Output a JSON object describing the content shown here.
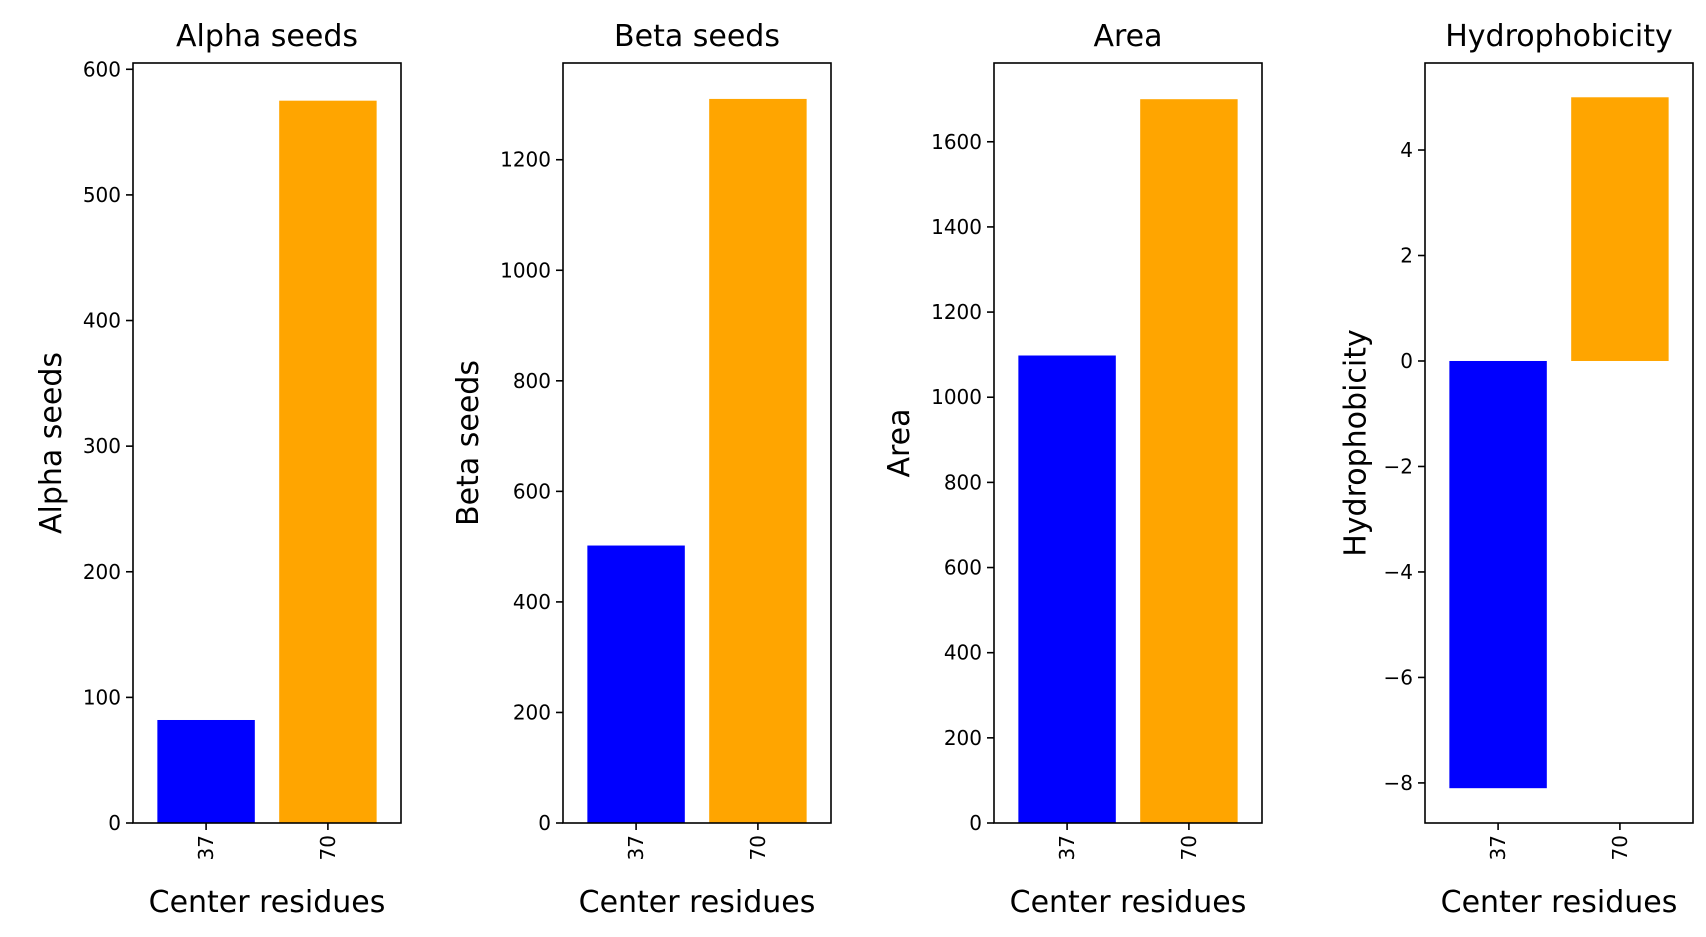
{
  "chart_data": [
    {
      "type": "bar",
      "title": "Alpha seeds",
      "xlabel": "Center residues",
      "ylabel": "Alpha seeds",
      "categories": [
        "37",
        "70"
      ],
      "values": [
        82,
        575
      ],
      "colors": [
        "#0000ff",
        "#ffa500"
      ],
      "ylim": [
        0,
        605
      ],
      "yticks": [
        0,
        100,
        200,
        300,
        400,
        500,
        600
      ],
      "grid": false,
      "legend": "none"
    },
    {
      "type": "bar",
      "title": "Beta seeds",
      "xlabel": "Center residues",
      "ylabel": "Beta seeds",
      "categories": [
        "37",
        "70"
      ],
      "values": [
        502,
        1310
      ],
      "colors": [
        "#0000ff",
        "#ffa500"
      ],
      "ylim": [
        0,
        1375
      ],
      "yticks": [
        0,
        200,
        400,
        600,
        800,
        1000,
        1200
      ],
      "grid": false,
      "legend": "none"
    },
    {
      "type": "bar",
      "title": "Area",
      "xlabel": "Center residues",
      "ylabel": "Area",
      "categories": [
        "37",
        "70"
      ],
      "values": [
        1098,
        1700
      ],
      "colors": [
        "#0000ff",
        "#ffa500"
      ],
      "ylim": [
        0,
        1785
      ],
      "yticks": [
        0,
        200,
        400,
        600,
        800,
        1000,
        1200,
        1400,
        1600
      ],
      "grid": false,
      "legend": "none"
    },
    {
      "type": "bar",
      "title": "Hydrophobicity",
      "xlabel": "Center residues",
      "ylabel": "Hydrophobicity",
      "categories": [
        "37",
        "70"
      ],
      "values": [
        -8.1,
        5.0
      ],
      "colors": [
        "#0000ff",
        "#ffa500"
      ],
      "ylim": [
        -8.76,
        5.65
      ],
      "yticks": [
        -8,
        -6,
        -4,
        -2,
        0,
        2,
        4
      ],
      "ytick_labels": [
        "−8",
        "−6",
        "−4",
        "−2",
        "0",
        "2",
        "4"
      ],
      "grid": false,
      "legend": "none"
    }
  ]
}
